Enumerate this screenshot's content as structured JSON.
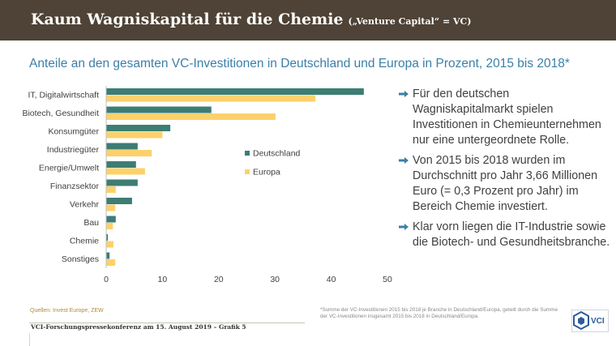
{
  "header": {
    "title": "Kaum Wagniskapital für die Chemie",
    "subtitle": "(„Venture Capital“ = VC)"
  },
  "chart_title": "Anteile an den gesamten VC-Investitionen in Deutschland und Europa in Prozent, 2015 bis 2018*",
  "chart_data": {
    "type": "bar",
    "orientation": "horizontal",
    "categories": [
      "IT, Digitalwirtschaft",
      "Biotech, Gesundheit",
      "Konsumgüter",
      "Industriegüter",
      "Energie/Umwelt",
      "Finanzsektor",
      "Verkehr",
      "Bau",
      "Chemie",
      "Sonstiges"
    ],
    "series": [
      {
        "name": "Deutschland",
        "color": "#3d7d74",
        "values": [
          45.8,
          18.7,
          11.4,
          5.6,
          5.3,
          5.6,
          4.6,
          1.7,
          0.3,
          0.6
        ]
      },
      {
        "name": "Europa",
        "color": "#fcd16b",
        "values": [
          37.2,
          30.1,
          10.0,
          8.1,
          6.9,
          1.7,
          1.6,
          1.2,
          1.3,
          1.6
        ]
      }
    ],
    "xlim": [
      0,
      50
    ],
    "xticks": [
      "0",
      "10",
      "20",
      "30",
      "40",
      "50"
    ],
    "legend_position": "right",
    "grid": false
  },
  "bullets": [
    "Für den deutschen Wagniskapitalmarkt spielen Investitionen in Chemie­unternehmen nur eine untergeordnete Rolle.",
    "Von 2015 bis 2018 wurden im Durchschnitt pro Jahr 3,66 Millionen Euro (= 0,3 Prozent pro Jahr) im Bereich Chemie investiert.",
    "Klar vorn liegen die IT-Industrie sowie die Biotech- und Gesundheitsbranche."
  ],
  "source": "Quellen: Invest Europe, ZEW",
  "footnote": "*Summe der VC-Investitionen 2015 bis 2018 je Branche in Deutschland/Europa, geteilt durch die Summe der VC-Investitionen insgesamt 2015 bis 2018 in Deutschland/Europa.",
  "footer": "VCI-Forschungspressekonferenz am 15. August 2019 – Grafik 5",
  "logo_text": "VCI",
  "colors": {
    "header_bg": "#4e4336",
    "title_blue": "#3b7fa8",
    "arrow_blue": "#3b7fa8"
  }
}
